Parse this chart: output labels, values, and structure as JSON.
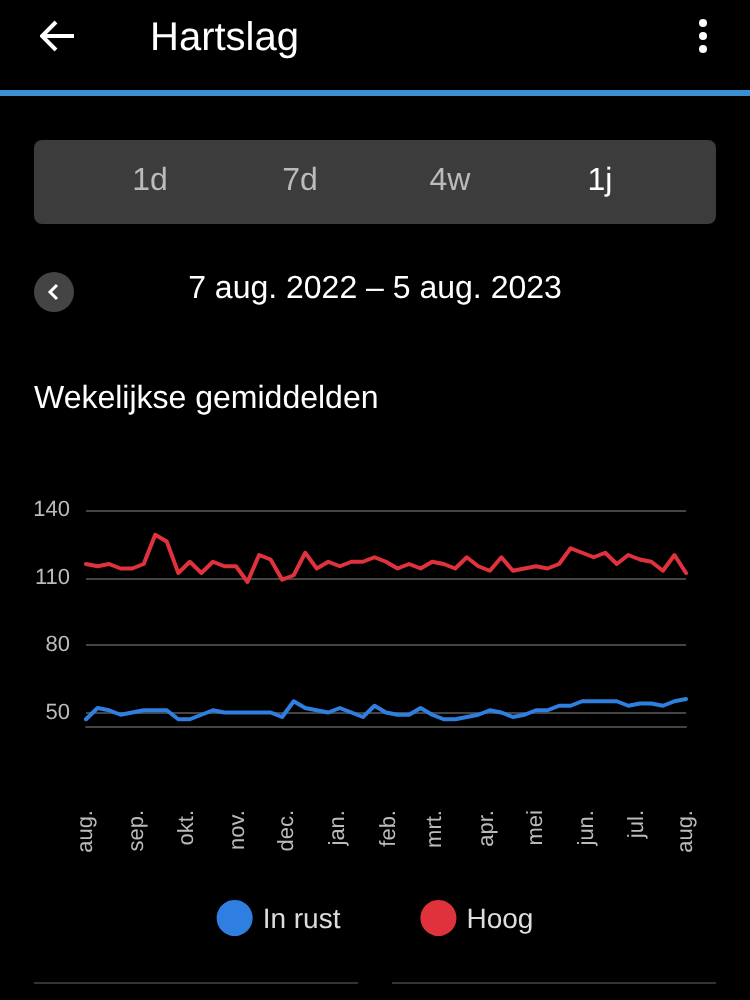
{
  "chart_data": {
    "type": "line",
    "title": "Hartslag",
    "subtitle": "Wekelijkse gemiddelden",
    "annotations": [
      "1d",
      "7d",
      "4w",
      "1j",
      "7 aug. 2022 – 5 aug. 2023"
    ],
    "x": [
      "2022-08-07",
      "2022-08-14",
      "2022-08-21",
      "2022-08-28",
      "2022-09-04",
      "2022-09-11",
      "2022-09-18",
      "2022-09-25",
      "2022-10-02",
      "2022-10-09",
      "2022-10-16",
      "2022-10-23",
      "2022-10-30",
      "2022-11-06",
      "2022-11-13",
      "2022-11-20",
      "2022-11-27",
      "2022-12-04",
      "2022-12-11",
      "2022-12-18",
      "2022-12-25",
      "2023-01-01",
      "2023-01-08",
      "2023-01-15",
      "2023-01-22",
      "2023-01-29",
      "2023-02-05",
      "2023-02-12",
      "2023-02-19",
      "2023-02-26",
      "2023-03-05",
      "2023-03-12",
      "2023-03-19",
      "2023-03-26",
      "2023-04-02",
      "2023-04-09",
      "2023-04-16",
      "2023-04-23",
      "2023-04-30",
      "2023-05-07",
      "2023-05-14",
      "2023-05-21",
      "2023-05-28",
      "2023-06-04",
      "2023-06-11",
      "2023-06-18",
      "2023-06-25",
      "2023-07-02",
      "2023-07-09",
      "2023-07-16",
      "2023-07-23",
      "2023-07-30",
      "2023-08-06"
    ],
    "series": [
      {
        "name": "In rust",
        "color": "#2f7fe0",
        "values": [
          47,
          52,
          51,
          49,
          50,
          51,
          51,
          51,
          47,
          47,
          49,
          51,
          50,
          50,
          50,
          50,
          50,
          48,
          55,
          52,
          51,
          50,
          52,
          50,
          48,
          53,
          50,
          49,
          49,
          52,
          49,
          47,
          47,
          48,
          49,
          51,
          50,
          48,
          49,
          51,
          51,
          53,
          53,
          55,
          55,
          55,
          55,
          53,
          54,
          54,
          53,
          55,
          56
        ]
      },
      {
        "name": "Hoog",
        "color": "#e0323c",
        "values": [
          116,
          115,
          116,
          114,
          114,
          116,
          129,
          126,
          112,
          117,
          112,
          117,
          115,
          115,
          108,
          120,
          118,
          109,
          111,
          121,
          114,
          117,
          115,
          117,
          117,
          119,
          117,
          114,
          116,
          114,
          117,
          116,
          114,
          119,
          115,
          113,
          119,
          113,
          114,
          115,
          114,
          116,
          123,
          121,
          119,
          121,
          116,
          120,
          118,
          117,
          113,
          120,
          112
        ]
      }
    ],
    "xlim": [
      "2022-08-07",
      "2023-08-06"
    ],
    "xticks": [
      {
        "value": "2022-08-07",
        "label": "aug."
      },
      {
        "value": "2022-09-07",
        "label": "sep."
      },
      {
        "value": "2022-10-07",
        "label": "okt."
      },
      {
        "value": "2022-11-07",
        "label": "nov."
      },
      {
        "value": "2022-12-07",
        "label": "dec."
      },
      {
        "value": "2023-01-07",
        "label": "jan."
      },
      {
        "value": "2023-02-07",
        "label": "feb."
      },
      {
        "value": "2023-03-07",
        "label": "mrt."
      },
      {
        "value": "2023-04-07",
        "label": "apr."
      },
      {
        "value": "2023-05-07",
        "label": "mei"
      },
      {
        "value": "2023-06-07",
        "label": "jun."
      },
      {
        "value": "2023-07-07",
        "label": "jul."
      },
      {
        "value": "2023-08-06",
        "label": "aug."
      }
    ],
    "ylim": [
      44,
      140
    ],
    "yticks": [
      50,
      80,
      110,
      140
    ],
    "grid": "y",
    "legend": "bottom",
    "marker": "none",
    "line_style": "solid"
  }
}
